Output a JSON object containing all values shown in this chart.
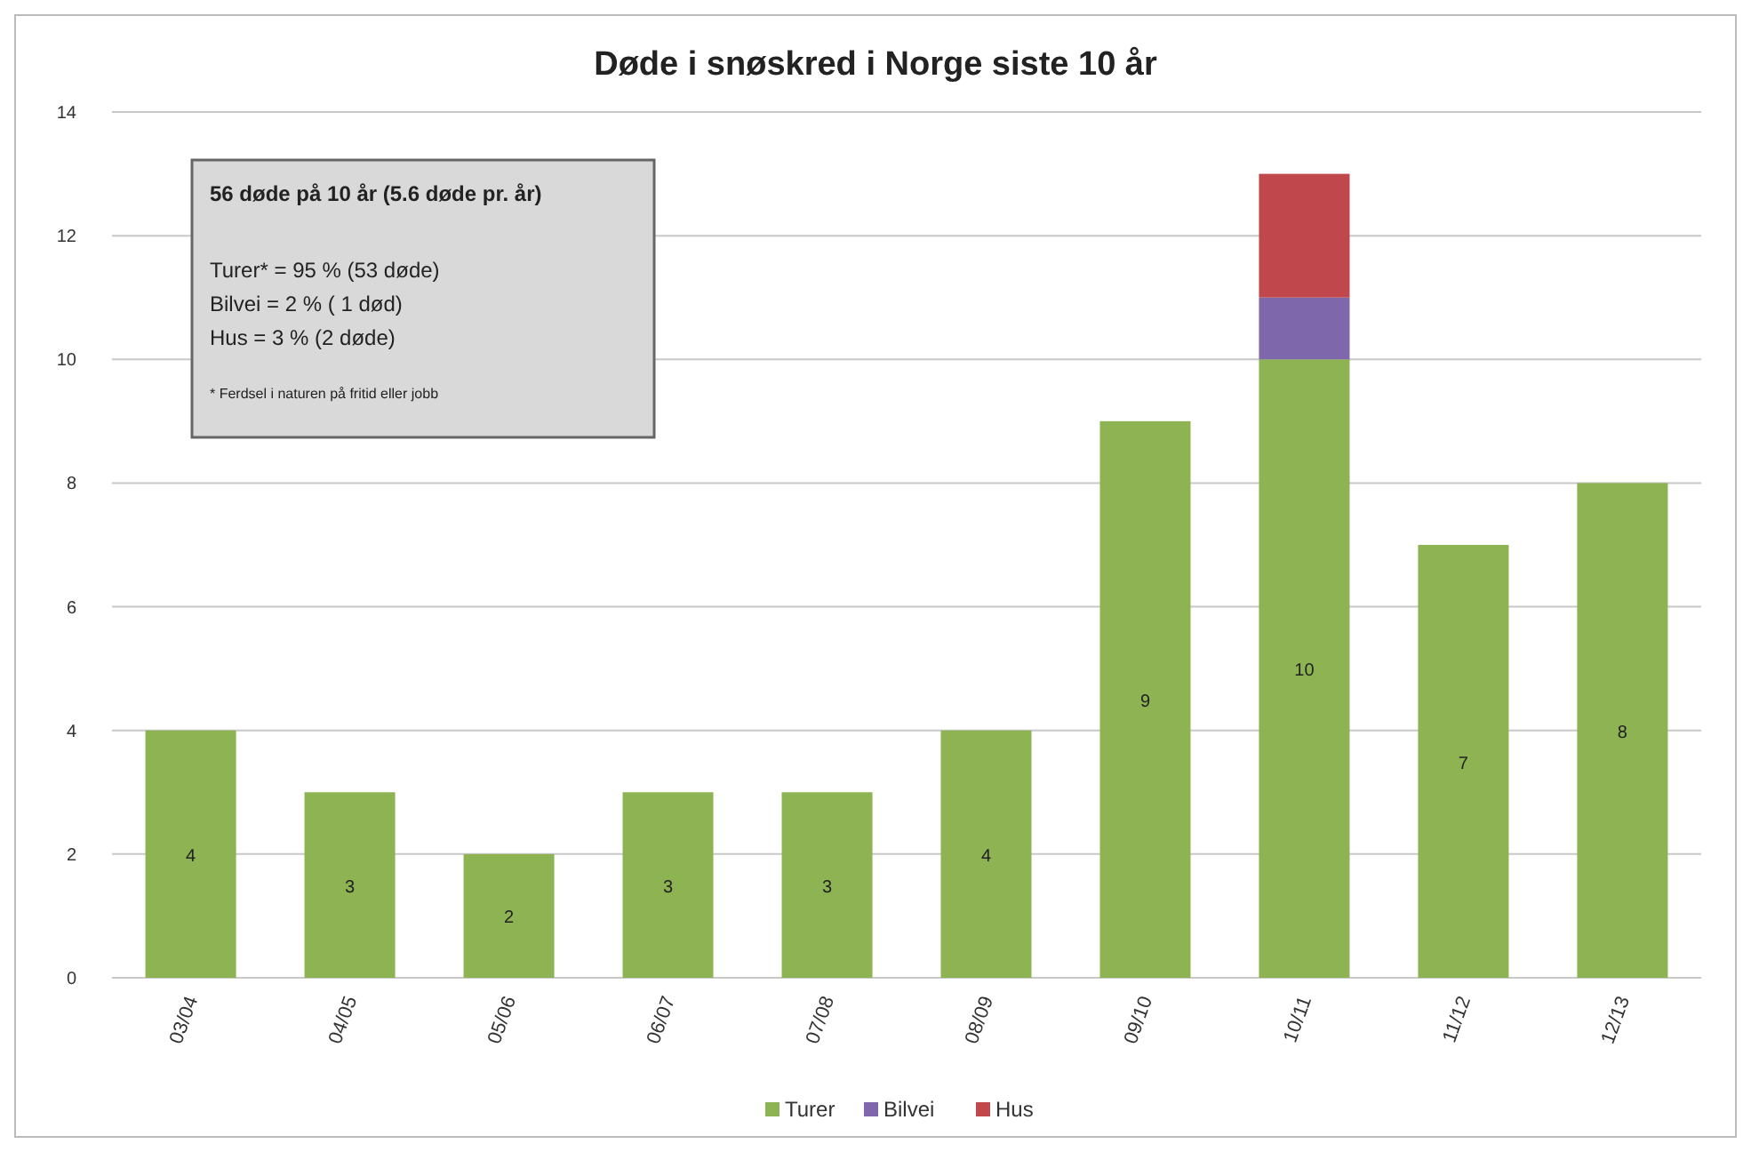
{
  "chart_data": {
    "type": "bar",
    "title": "Døde i snøskred i Norge siste 10 år",
    "stacked": true,
    "categories": [
      "03/04",
      "04/05",
      "05/06",
      "06/07",
      "07/08",
      "08/09",
      "09/10",
      "10/11",
      "11/12",
      "12/13"
    ],
    "series": [
      {
        "name": "Turer",
        "color": "#8db353",
        "values": [
          4,
          3,
          2,
          3,
          3,
          4,
          9,
          10,
          7,
          8
        ],
        "value_labels": [
          "4",
          "3",
          "2",
          "3",
          "3",
          "4",
          "9",
          "10",
          "7",
          "8"
        ]
      },
      {
        "name": "Bilvei",
        "color": "#7e67ab",
        "values": [
          null,
          null,
          null,
          null,
          null,
          null,
          null,
          1,
          null,
          null
        ]
      },
      {
        "name": "Hus",
        "color": "#c0474b",
        "values": [
          null,
          null,
          null,
          null,
          null,
          null,
          null,
          2,
          null,
          null
        ]
      }
    ],
    "ylim": [
      0,
      14
    ],
    "yticks": [
      0,
      2,
      4,
      6,
      8,
      10,
      12,
      14
    ],
    "grid": "y",
    "legend": "bottom",
    "annotations": [
      "56 døde på 10 år (5.6 døde pr. år)",
      "Turer* = 95 % (53 døde)",
      "Bilvei = 2 % ( 1 død)",
      "Hus = 3 % (2 døde)",
      "* Ferdsel i naturen på fritid eller jobb"
    ]
  }
}
